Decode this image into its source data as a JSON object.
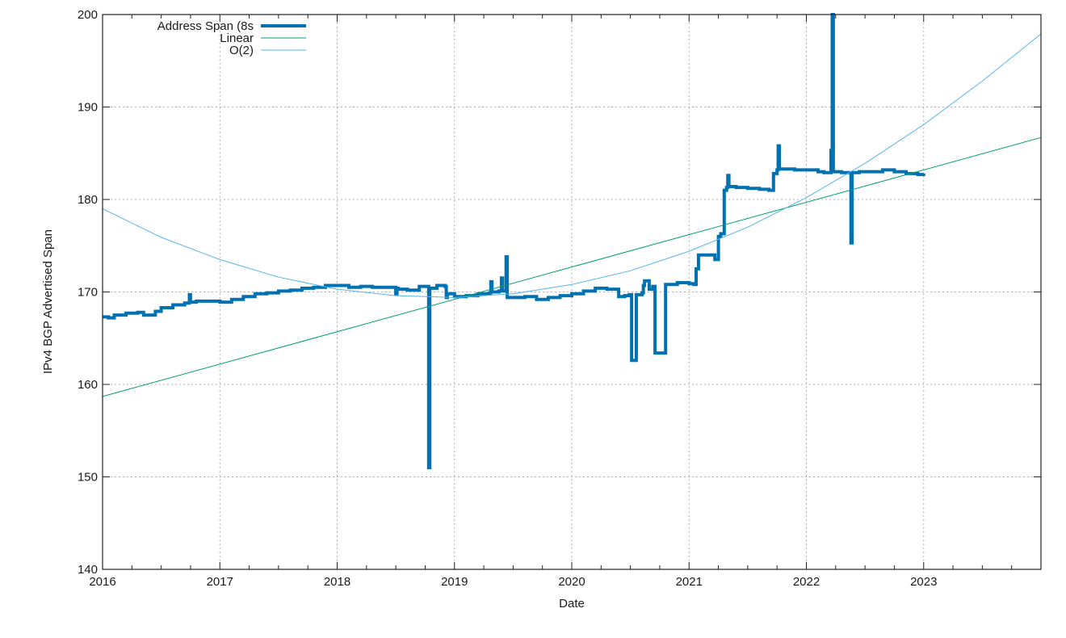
{
  "chart_data": {
    "type": "line",
    "title": "",
    "xlabel": "Date",
    "ylabel": "IPv4 BGP Advertised Span",
    "xlim": [
      2016,
      2024
    ],
    "ylim": [
      140,
      200
    ],
    "x_ticks": [
      2016,
      2017,
      2018,
      2019,
      2020,
      2021,
      2022,
      2023
    ],
    "x_tick_labels": [
      "2016",
      "2017",
      "2018",
      "2019",
      "2020",
      "2021",
      "2022",
      "2023"
    ],
    "y_ticks": [
      140,
      150,
      160,
      170,
      180,
      190,
      200
    ],
    "y_tick_labels": [
      "140",
      "150",
      "160",
      "170",
      "180",
      "190",
      "200"
    ],
    "grid": true,
    "legend_position": "top-left",
    "series": [
      {
        "name": "Address Span (8s",
        "color": "#0072b2",
        "line_width": 4,
        "x": [
          2016.0,
          2016.05,
          2016.1,
          2016.2,
          2016.3,
          2016.35,
          2016.45,
          2016.5,
          2016.6,
          2016.7,
          2016.74,
          2016.75,
          2016.76,
          2016.8,
          2016.9,
          2017.0,
          2017.1,
          2017.2,
          2017.3,
          2017.4,
          2017.5,
          2017.6,
          2017.7,
          2017.8,
          2017.9,
          2018.0,
          2018.1,
          2018.2,
          2018.3,
          2018.4,
          2018.5,
          2018.51,
          2018.52,
          2018.6,
          2018.7,
          2018.77,
          2018.78,
          2018.79,
          2018.85,
          2018.92,
          2018.93,
          2018.94,
          2019.0,
          2019.1,
          2019.2,
          2019.3,
          2019.31,
          2019.32,
          2019.38,
          2019.4,
          2019.41,
          2019.44,
          2019.45,
          2019.46,
          2019.5,
          2019.6,
          2019.7,
          2019.8,
          2019.9,
          2020.0,
          2020.1,
          2020.2,
          2020.3,
          2020.35,
          2020.4,
          2020.45,
          2020.49,
          2020.5,
          2020.51,
          2020.55,
          2020.6,
          2020.61,
          2020.62,
          2020.66,
          2020.69,
          2020.7,
          2020.71,
          2020.8,
          2020.9,
          2021.0,
          2021.04,
          2021.06,
          2021.08,
          2021.1,
          2021.15,
          2021.2,
          2021.22,
          2021.25,
          2021.27,
          2021.3,
          2021.32,
          2021.33,
          2021.34,
          2021.4,
          2021.5,
          2021.6,
          2021.68,
          2021.72,
          2021.75,
          2021.76,
          2021.77,
          2021.8,
          2021.9,
          2022.0,
          2022.1,
          2022.15,
          2022.2,
          2022.21,
          2022.22,
          2022.23,
          2022.25,
          2022.3,
          2022.37,
          2022.38,
          2022.39,
          2022.45,
          2022.55,
          2022.65,
          2022.75,
          2022.85,
          2022.95,
          2023.0
        ],
        "values": [
          167.3,
          167.2,
          167.5,
          167.7,
          167.8,
          167.5,
          167.9,
          168.3,
          168.6,
          168.8,
          169.7,
          168.9,
          168.9,
          169.0,
          169.0,
          168.9,
          169.2,
          169.5,
          169.8,
          169.9,
          170.1,
          170.2,
          170.4,
          170.5,
          170.7,
          170.7,
          170.5,
          170.6,
          170.5,
          170.5,
          169.8,
          170.4,
          170.3,
          170.2,
          170.6,
          170.6,
          151.0,
          170.4,
          170.7,
          170.6,
          169.4,
          169.8,
          169.5,
          169.6,
          169.8,
          169.9,
          171.1,
          170.0,
          170.1,
          171.5,
          170.1,
          173.8,
          169.4,
          169.4,
          169.4,
          169.5,
          169.2,
          169.4,
          169.6,
          169.8,
          170.1,
          170.4,
          170.3,
          170.3,
          169.5,
          169.6,
          169.7,
          169.7,
          162.6,
          169.7,
          169.9,
          170.7,
          171.2,
          170.3,
          170.6,
          170.6,
          163.4,
          170.8,
          171.0,
          170.9,
          170.8,
          172.5,
          174.0,
          174.0,
          174.0,
          174.0,
          173.5,
          176.0,
          176.3,
          181.0,
          181.3,
          182.6,
          181.4,
          181.3,
          181.2,
          181.1,
          181.0,
          182.8,
          183.2,
          185.8,
          183.3,
          183.3,
          183.2,
          183.2,
          183.0,
          182.9,
          182.9,
          185.3,
          200.0,
          183.0,
          183.0,
          182.9,
          182.9,
          175.3,
          182.9,
          183.0,
          183.0,
          183.2,
          183.0,
          182.8,
          182.7,
          182.8
        ]
      },
      {
        "name": "Linear",
        "color": "#009e73",
        "line_width": 1,
        "x": [
          2016.0,
          2024.0
        ],
        "values": [
          158.7,
          186.7
        ]
      },
      {
        "name": "O(2)",
        "color": "#56b4e9",
        "line_width": 1,
        "x": [
          2016.0,
          2016.5,
          2017.0,
          2017.5,
          2018.0,
          2018.5,
          2019.0,
          2019.5,
          2020.0,
          2020.5,
          2021.0,
          2021.5,
          2022.0,
          2022.5,
          2023.0,
          2023.5,
          2024.0
        ],
        "values": [
          179.0,
          175.9,
          173.5,
          171.6,
          170.3,
          169.6,
          169.4,
          169.8,
          170.8,
          172.3,
          174.4,
          177.0,
          180.2,
          183.9,
          188.1,
          192.8,
          197.9
        ]
      }
    ]
  },
  "legend": {
    "items": [
      {
        "label": "Address Span (8s",
        "color": "#0072b2"
      },
      {
        "label": "Linear",
        "color": "#009e73"
      },
      {
        "label": "O(2)",
        "color": "#56b4e9"
      }
    ]
  },
  "axes": {
    "xlabel": "Date",
    "ylabel": "IPv4 BGP Advertised Span"
  }
}
